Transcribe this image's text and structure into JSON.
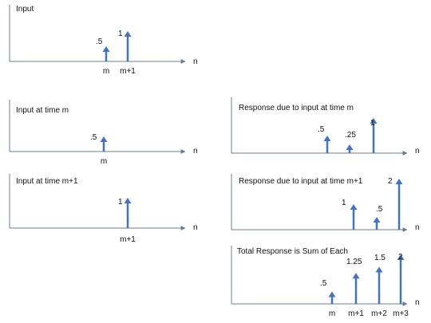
{
  "colors": {
    "axis": "#6b7c93",
    "stem": "#4472c4"
  },
  "panels": [
    {
      "title": "Input",
      "axis_label": "n",
      "ticks": [
        {
          "label": "m"
        },
        {
          "label": "m+1"
        }
      ],
      "stems": [
        {
          "value": 0.5,
          "label": ".5"
        },
        {
          "value": 1,
          "label": "1"
        }
      ]
    },
    {
      "title": "Input at time m",
      "axis_label": "n",
      "ticks": [
        {
          "label": "m"
        }
      ],
      "stems": [
        {
          "value": 0.5,
          "label": ".5"
        }
      ]
    },
    {
      "title": "Response due to input at time m",
      "axis_label": "n",
      "ticks": [],
      "stems": [
        {
          "value": 0.5,
          "label": ".5"
        },
        {
          "value": 0.25,
          "label": ".25"
        },
        {
          "value": 1,
          "label": "1"
        }
      ]
    },
    {
      "title": "Input at time m+1",
      "axis_label": "n",
      "ticks": [
        {
          "label": "m+1"
        }
      ],
      "stems": [
        {
          "value": 1,
          "label": "1"
        }
      ]
    },
    {
      "title": "Response due to input at time m+1",
      "axis_label": "n",
      "ticks": [],
      "stems": [
        {
          "value": 1,
          "label": "1"
        },
        {
          "value": 0.5,
          "label": ".5"
        },
        {
          "value": 2,
          "label": "2"
        }
      ]
    },
    {
      "title": "Total Response is Sum of Each",
      "axis_label": "n",
      "ticks": [
        {
          "label": "m"
        },
        {
          "label": "m+1"
        },
        {
          "label": "m+2"
        },
        {
          "label": "m+3"
        }
      ],
      "stems": [
        {
          "value": 0.5,
          "label": ".5"
        },
        {
          "value": 1.25,
          "label": "1.25"
        },
        {
          "value": 1.5,
          "label": "1.5"
        },
        {
          "value": 2,
          "label": "2"
        }
      ]
    }
  ]
}
